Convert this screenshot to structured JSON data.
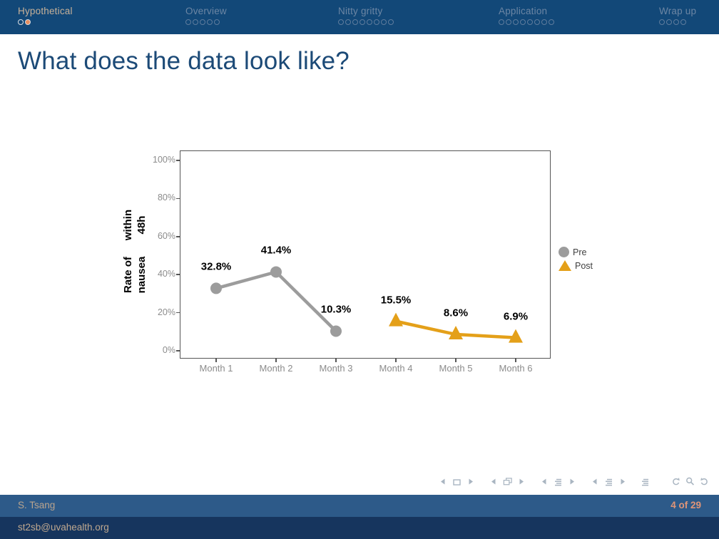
{
  "topbar": {
    "sections": [
      {
        "label": "Hypothetical",
        "dot_count": 2,
        "current_dot": 1,
        "active": true
      },
      {
        "label": "Overview",
        "dot_count": 5,
        "current_dot": -1,
        "active": false
      },
      {
        "label": "Nitty gritty",
        "dot_count": 8,
        "current_dot": -1,
        "active": false
      },
      {
        "label": "Application",
        "dot_count": 8,
        "current_dot": -1,
        "active": false
      },
      {
        "label": "Wrap up",
        "dot_count": 4,
        "current_dot": -1,
        "active": false
      }
    ]
  },
  "title": "What does the data look like?",
  "chart_data": {
    "type": "line",
    "x_categories": [
      "Month 1",
      "Month 2",
      "Month 3",
      "Month 4",
      "Month 5",
      "Month 6"
    ],
    "series": [
      {
        "name": "Pre",
        "marker": "circle",
        "color": "#9C9C9C",
        "points": [
          {
            "x": "Month 1",
            "y": 32.8,
            "label": "32.8%"
          },
          {
            "x": "Month 2",
            "y": 41.4,
            "label": "41.4%"
          },
          {
            "x": "Month 3",
            "y": 10.3,
            "label": "10.3%"
          }
        ]
      },
      {
        "name": "Post",
        "marker": "triangle",
        "color": "#E4A019",
        "points": [
          {
            "x": "Month 4",
            "y": 15.5,
            "label": "15.5%"
          },
          {
            "x": "Month 5",
            "y": 8.6,
            "label": "8.6%"
          },
          {
            "x": "Month 6",
            "y": 6.9,
            "label": "6.9%"
          }
        ]
      }
    ],
    "ylabel_lines": [
      "Rate of nausea",
      "within 48h"
    ],
    "y_ticks": [
      {
        "value": 0,
        "label": "0%"
      },
      {
        "value": 20,
        "label": "20%"
      },
      {
        "value": 40,
        "label": "40%"
      },
      {
        "value": 60,
        "label": "60%"
      },
      {
        "value": 80,
        "label": "80%"
      },
      {
        "value": 100,
        "label": "100%"
      }
    ],
    "ylim": [
      0,
      100
    ],
    "grid": false,
    "legend_position": "right"
  },
  "beamer_nav": {
    "groups": [
      {
        "name": "slide-nav",
        "icons": [
          "arrow-left",
          "slide",
          "arrow-right"
        ]
      },
      {
        "name": "frame-nav",
        "icons": [
          "arrow-left",
          "frames",
          "arrow-right"
        ]
      },
      {
        "name": "subsection-nav",
        "icons": [
          "arrow-left",
          "lines",
          "arrow-right"
        ]
      },
      {
        "name": "section-nav",
        "icons": [
          "arrow-left",
          "lines",
          "arrow-right"
        ]
      },
      {
        "name": "appendix-nav",
        "icons": [
          "lines"
        ]
      },
      {
        "name": "history-nav",
        "icons": [
          "undo",
          "magnifier",
          "redo"
        ]
      }
    ]
  },
  "footer": {
    "author": "S. Tsang",
    "page": "4  of 29",
    "email": "st2sb@uvahealth.org"
  },
  "colors": {
    "topbar_bg": "#124878",
    "accent_dot": "#E78E5F",
    "title": "#1C4A77",
    "pre_series": "#9C9C9C",
    "post_series": "#E4A019",
    "footer1_bg": "#2D5A89",
    "footer2_bg": "#16355E",
    "page_number": "#E09578"
  }
}
